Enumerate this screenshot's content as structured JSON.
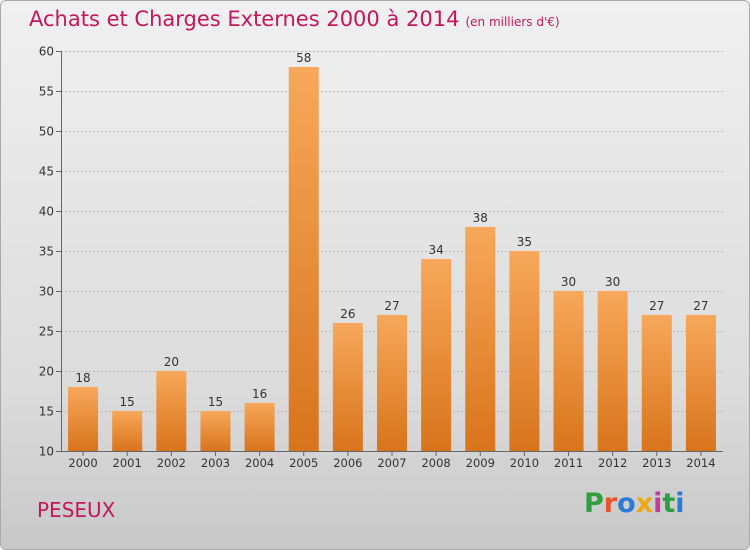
{
  "header": {
    "title": "Achats et Charges Externes 2000 à 2014",
    "subtitle": "(en milliers d'€)"
  },
  "footer": {
    "place": "PESEUX",
    "logo": "Proxiti"
  },
  "colors": {
    "title": "#c2185b",
    "bar_light": "#f7a85a",
    "bar_dark": "#d8741c",
    "logo_letters": [
      "#2e9e3e",
      "#e4572e",
      "#2d7ad6",
      "#f0a70d",
      "#c33c99",
      "#2e9e3e",
      "#2d7ad6"
    ]
  },
  "chart_data": {
    "type": "bar",
    "title": "Achats et Charges Externes 2000 à 2014",
    "subtitle": "(en milliers d'€)",
    "categories": [
      "2000",
      "2001",
      "2002",
      "2003",
      "2004",
      "2005",
      "2006",
      "2007",
      "2008",
      "2009",
      "2010",
      "2011",
      "2012",
      "2013",
      "2014"
    ],
    "values": [
      18,
      15,
      20,
      15,
      16,
      58,
      26,
      27,
      34,
      38,
      35,
      30,
      30,
      27,
      27
    ],
    "ylim": [
      10,
      60
    ],
    "yticks": [
      10,
      15,
      20,
      25,
      30,
      35,
      40,
      45,
      50,
      55,
      60
    ],
    "grid": true,
    "legend": "none",
    "data_labels": true
  }
}
